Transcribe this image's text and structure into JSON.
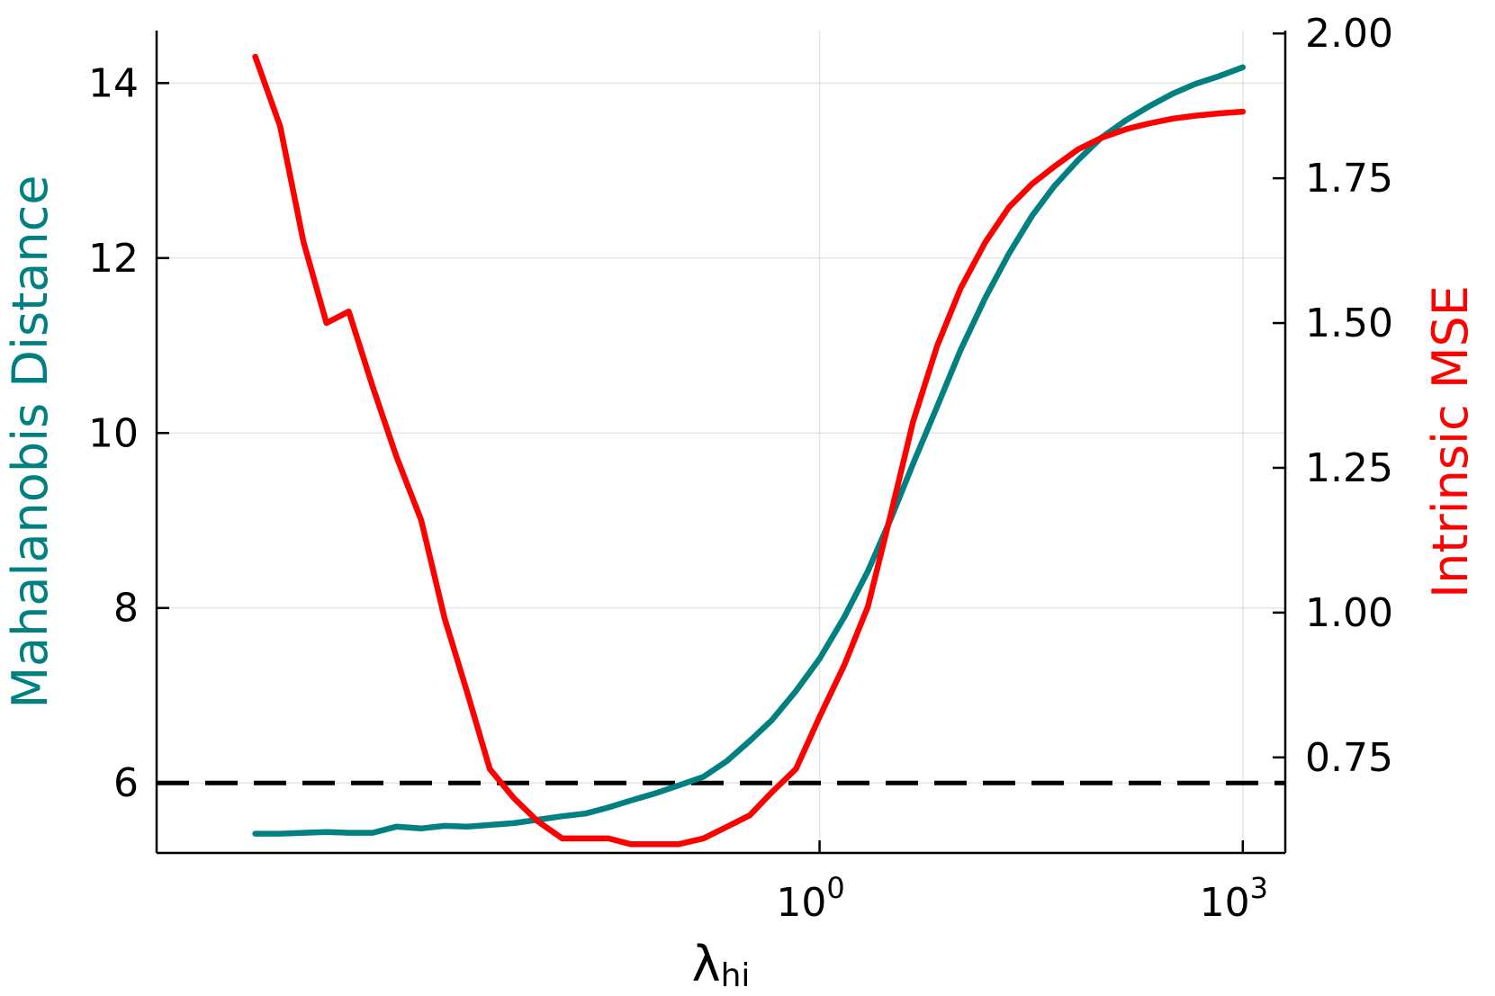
{
  "chart_data": {
    "type": "line",
    "xlabel": "λ",
    "xlabel_subscript": "hi",
    "x_scale": "log10",
    "xlim": [
      2e-05,
      2000
    ],
    "x_ticks": [
      {
        "value": 1,
        "base": "10",
        "exp": "0"
      },
      {
        "value": 1000,
        "base": "10",
        "exp": "3"
      }
    ],
    "ylabel_left": "Mahalanobis Distance",
    "ylabel_left_color": "#008080",
    "ylim_left": [
      5.2,
      14.6
    ],
    "yticks_left": [
      "6",
      "8",
      "10",
      "12",
      "14"
    ],
    "ylabel_right": "Intrinsic MSE",
    "ylabel_right_color": "#ff0000",
    "ylim_right": [
      0.585,
      2.005
    ],
    "yticks_right": [
      "0.75",
      "1.00",
      "1.25",
      "1.50",
      "1.75",
      "2.00"
    ],
    "grid": true,
    "threshold": {
      "axis": "left",
      "y": 6,
      "style": "dashed",
      "color": "#000000"
    },
    "series": [
      {
        "axis": "left",
        "color": "#008080",
        "x": [
          0.0001,
          0.00015,
          0.00022,
          0.00032,
          0.00046,
          0.00068,
          0.001,
          0.0015,
          0.0022,
          0.0032,
          0.0046,
          0.0068,
          0.01,
          0.015,
          0.022,
          0.032,
          0.046,
          0.068,
          0.1,
          0.15,
          0.22,
          0.32,
          0.46,
          0.68,
          1,
          1.5,
          2.2,
          3.2,
          4.6,
          6.8,
          10,
          15,
          22,
          32,
          46,
          68,
          100,
          150,
          220,
          320,
          460,
          680,
          1000
        ],
        "y": [
          5.42,
          5.42,
          5.43,
          5.44,
          5.43,
          5.43,
          5.5,
          5.48,
          5.51,
          5.5,
          5.52,
          5.54,
          5.58,
          5.62,
          5.65,
          5.72,
          5.8,
          5.88,
          5.97,
          6.07,
          6.25,
          6.48,
          6.72,
          7.05,
          7.42,
          7.9,
          8.42,
          9.02,
          9.65,
          10.3,
          10.95,
          11.55,
          12.05,
          12.48,
          12.82,
          13.12,
          13.38,
          13.58,
          13.74,
          13.88,
          13.99,
          14.08,
          14.18
        ]
      },
      {
        "axis": "right",
        "color": "#ff0000",
        "x": [
          0.0001,
          0.00015,
          0.00022,
          0.00032,
          0.00046,
          0.00068,
          0.001,
          0.0015,
          0.0022,
          0.0032,
          0.0046,
          0.0068,
          0.01,
          0.015,
          0.022,
          0.032,
          0.046,
          0.068,
          0.1,
          0.15,
          0.22,
          0.32,
          0.46,
          0.68,
          1,
          1.5,
          2.2,
          3.2,
          4.6,
          6.8,
          10,
          15,
          22,
          32,
          46,
          68,
          100,
          150,
          220,
          320,
          460,
          680,
          1000
        ],
        "y": [
          1.96,
          1.84,
          1.64,
          1.5,
          1.52,
          1.39,
          1.27,
          1.16,
          0.99,
          0.86,
          0.73,
          0.68,
          0.64,
          0.61,
          0.61,
          0.61,
          0.6,
          0.6,
          0.6,
          0.61,
          0.63,
          0.65,
          0.69,
          0.73,
          0.82,
          0.91,
          1.01,
          1.17,
          1.33,
          1.46,
          1.56,
          1.64,
          1.7,
          1.74,
          1.77,
          1.8,
          1.82,
          1.835,
          1.845,
          1.853,
          1.858,
          1.862,
          1.865
        ]
      }
    ]
  }
}
